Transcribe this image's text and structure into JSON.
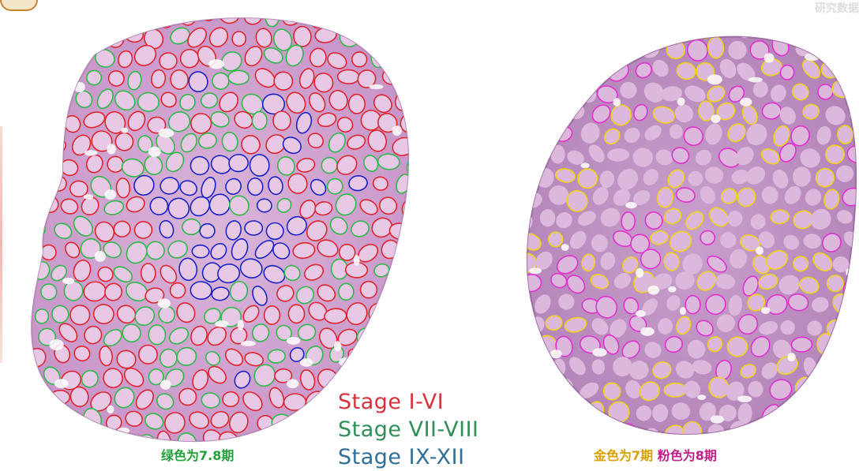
{
  "legend": {
    "items": [
      {
        "text": "Stage I-VI",
        "color": "#d6323c"
      },
      {
        "text": "Stage VII-VIII",
        "color": "#2e8f57"
      },
      {
        "text": "Stage IX-XII",
        "color": "#2f6f9a"
      }
    ]
  },
  "captions": {
    "left": {
      "text": "绿色为7.8期",
      "color": "#22a13a"
    },
    "right_gold": {
      "text": "金色为7期",
      "color": "#d9a000"
    },
    "right_pink": {
      "text": "粉色为8期",
      "color": "#c0208a"
    }
  },
  "watermark": {
    "text": "研究数据"
  },
  "colors": {
    "tissue_fill": "#cfa2cf",
    "tissue_dark": "#a874ad",
    "tubule_fill": "#e7c9e6",
    "outline_red": "#e0242e",
    "outline_green": "#2fb84a",
    "outline_blue": "#1b22c8",
    "outline_gold": "#f1d21a",
    "outline_pink": "#e030d0"
  },
  "icons": {
    "logo": "emblem-icon"
  }
}
